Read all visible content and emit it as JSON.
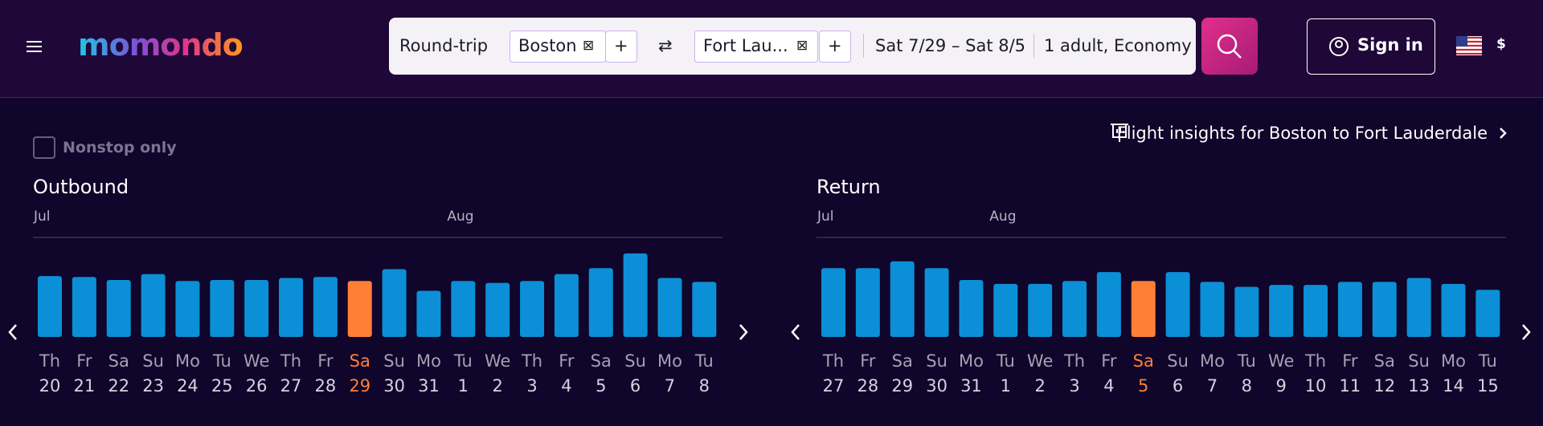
{
  "header": {
    "logo": "momondo",
    "trip_type": "Round-trip",
    "origin": "Boston",
    "destination": "Fort Lau...",
    "dates": "Sat 7/29 – Sat 8/5",
    "travelers": "1 adult, Economy",
    "sign_in": "Sign in",
    "currency": "$"
  },
  "filters": {
    "nonstop": "Nonstop only",
    "insights": "Flight insights for Boston to Fort Lauderdale"
  },
  "chart_data": [
    {
      "type": "bar",
      "title": "Outbound",
      "months": [
        "Jul",
        "Aug"
      ],
      "color": "#0b8fd6",
      "selected_color": "#ff7f37",
      "selected": 9,
      "categories": [
        "Th",
        "Fr",
        "Sa",
        "Su",
        "Mo",
        "Tu",
        "We",
        "Th",
        "Fr",
        "Sa",
        "Su",
        "Mo",
        "Tu",
        "We",
        "Th",
        "Fr",
        "Sa",
        "Su",
        "Mo",
        "Tu"
      ],
      "dates": [
        "20",
        "21",
        "22",
        "23",
        "24",
        "25",
        "26",
        "27",
        "28",
        "29",
        "30",
        "31",
        "1",
        "2",
        "3",
        "4",
        "5",
        "6",
        "7",
        "8"
      ],
      "values": [
        62,
        61,
        58,
        64,
        57,
        58,
        58,
        60,
        61,
        57,
        69,
        47,
        57,
        55,
        57,
        64,
        70,
        85,
        60,
        56
      ]
    },
    {
      "type": "bar",
      "title": "Return",
      "months": [
        "Jul",
        "Aug"
      ],
      "color": "#0b8fd6",
      "selected_color": "#ff7f37",
      "selected": 9,
      "categories": [
        "Th",
        "Fr",
        "Sa",
        "Su",
        "Mo",
        "Tu",
        "We",
        "Th",
        "Fr",
        "Sa",
        "Su",
        "Mo",
        "Tu",
        "We",
        "Th",
        "Fr",
        "Sa",
        "Su",
        "Mo",
        "Tu"
      ],
      "dates": [
        "27",
        "28",
        "29",
        "30",
        "31",
        "1",
        "2",
        "3",
        "4",
        "5",
        "6",
        "7",
        "8",
        "9",
        "10",
        "11",
        "12",
        "13",
        "14",
        "15"
      ],
      "values": [
        70,
        70,
        77,
        70,
        58,
        54,
        54,
        57,
        66,
        57,
        66,
        56,
        51,
        53,
        53,
        56,
        56,
        60,
        54,
        48
      ]
    }
  ]
}
